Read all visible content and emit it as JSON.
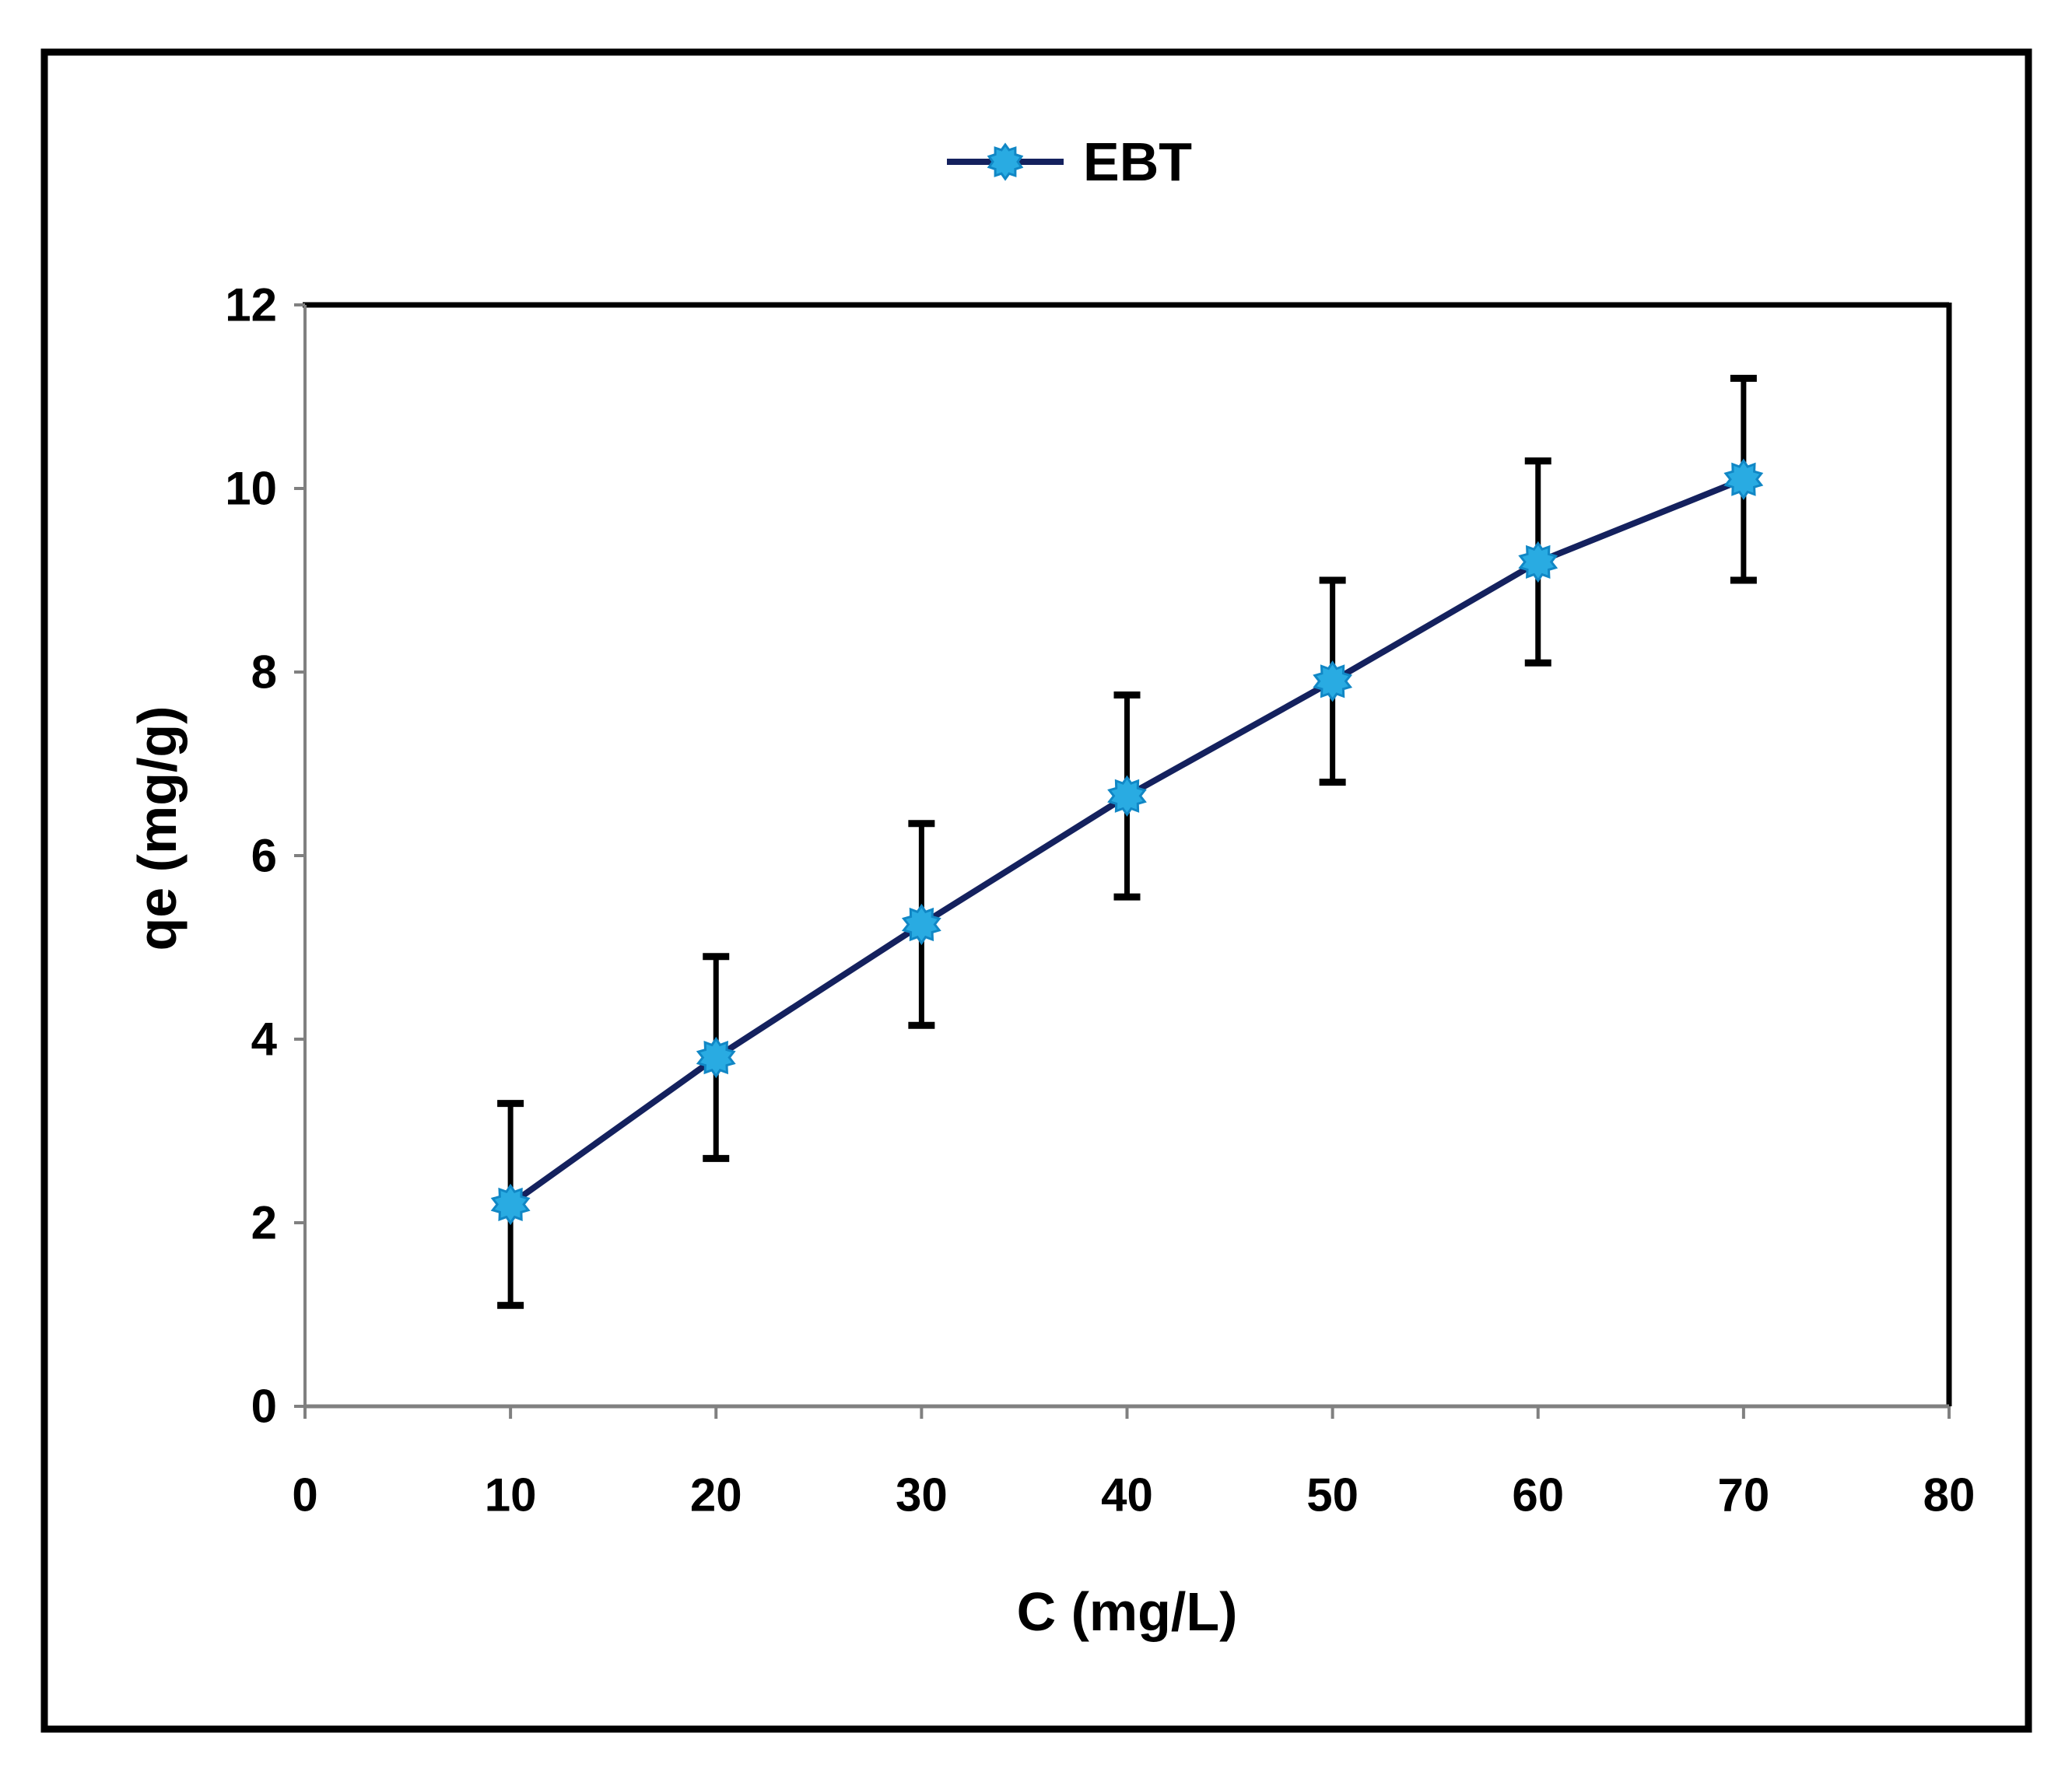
{
  "figure": {
    "background": "#ffffff",
    "border_color": "#000000"
  },
  "legend": {
    "label": "EBT",
    "position": "top-center"
  },
  "chart_data": {
    "type": "line",
    "title": "",
    "xlabel": "C (mg/L)",
    "ylabel": "qe (mg/g)",
    "xlim": [
      0,
      80
    ],
    "ylim": [
      0,
      12
    ],
    "xticks": [
      0,
      10,
      20,
      30,
      40,
      50,
      60,
      70,
      80
    ],
    "yticks": [
      0,
      2,
      4,
      6,
      8,
      10,
      12
    ],
    "grid": false,
    "legend_position": "top-center",
    "series": [
      {
        "name": "EBT",
        "x": [
          10,
          20,
          30,
          40,
          50,
          60,
          70
        ],
        "y": [
          2.2,
          3.8,
          5.25,
          6.65,
          7.9,
          9.2,
          10.1
        ],
        "yerr": [
          1.1,
          1.1,
          1.1,
          1.1,
          1.1,
          1.1,
          1.1
        ],
        "line_color": "#14215e",
        "marker_shape": "sun",
        "marker_color": "#29abe2",
        "marker_edge_color": "#1187c5"
      }
    ],
    "error_bar_color": "#000000",
    "axis_line_color": "#808080",
    "plot_border_color": "#000000",
    "tick_label_color": "#000000"
  }
}
